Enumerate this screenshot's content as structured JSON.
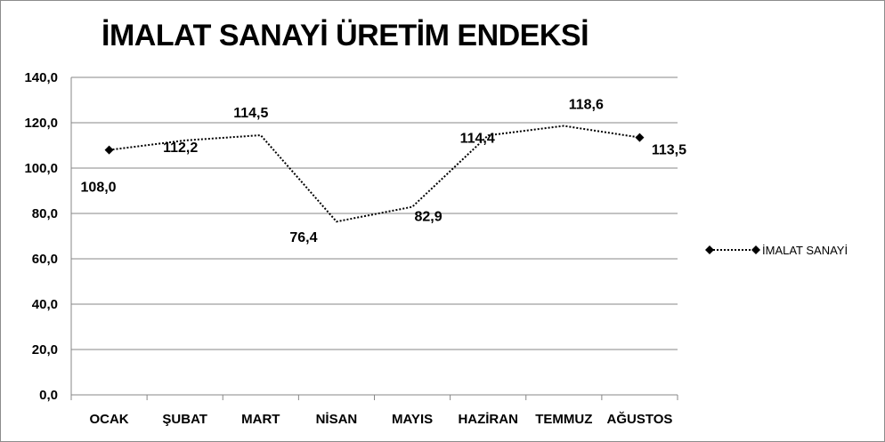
{
  "chart_data": {
    "type": "line",
    "title": "İMALAT SANAYİ ÜRETİM ENDEKSİ",
    "categories": [
      "OCAK",
      "ŞUBAT",
      "MART",
      "NİSAN",
      "MAYIS",
      "HAZİRAN",
      "TEMMUZ",
      "AĞUSTOS"
    ],
    "series": [
      {
        "name": "İMALAT SANAYİ",
        "values": [
          108.0,
          112.2,
          114.5,
          76.4,
          82.9,
          114.4,
          118.6,
          113.5
        ],
        "labels": [
          "108,0",
          "112,2",
          "114,5",
          "76,4",
          "82,9",
          "114,4",
          "118,6",
          "113,5"
        ],
        "color": "#000000",
        "line_style": "dotted",
        "markers": "diamond on first and last point"
      }
    ],
    "y_ticks": [
      "0,0",
      "20,0",
      "40,0",
      "60,0",
      "80,0",
      "100,0",
      "120,0",
      "140,0"
    ],
    "ylim": [
      0,
      140
    ],
    "grid": true,
    "legend_position": "right"
  }
}
